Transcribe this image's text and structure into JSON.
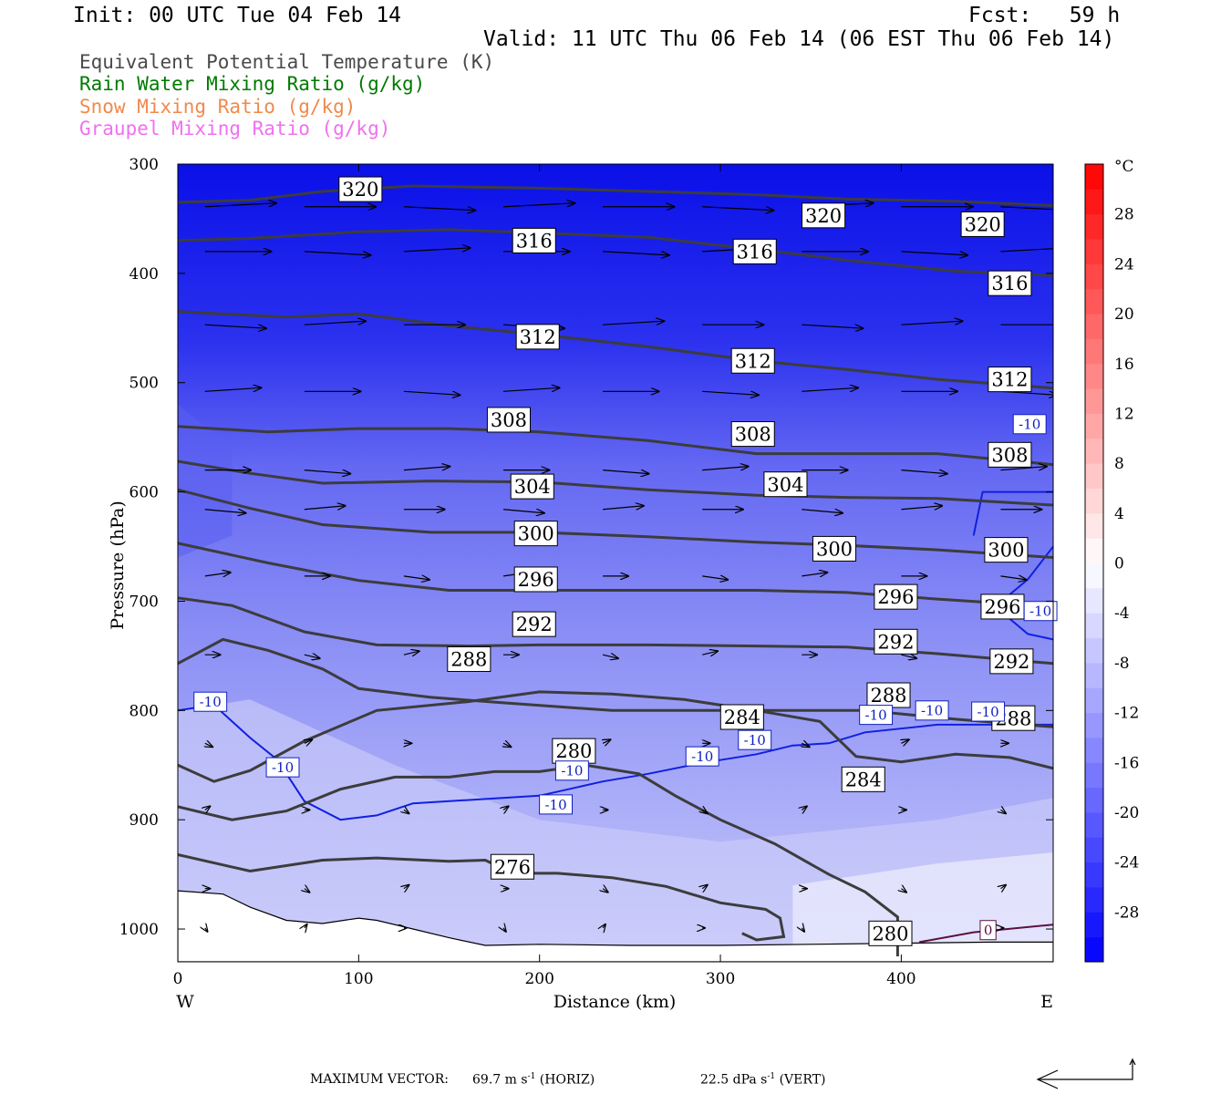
{
  "header": {
    "init": "Init: 00 UTC Tue 04 Feb 14",
    "fcst": "Fcst:   59 h",
    "valid": "Valid: 11 UTC Thu 06 Feb 14 (06 EST Thu 06 Feb 14)"
  },
  "legend": [
    {
      "label": "Equivalent Potential Temperature (K)",
      "color": "#4a4a4a"
    },
    {
      "label": "Rain Water Mixing Ratio (g/kg)",
      "color": "#007a00"
    },
    {
      "label": "Snow Mixing Ratio (g/kg)",
      "color": "#f08a4b"
    },
    {
      "label": "Graupel Mixing Ratio (g/kg)",
      "color": "#f070f0"
    }
  ],
  "footer": {
    "prefix": "MAXIMUM VECTOR:",
    "horiz_value": "69.7",
    "horiz_unit": "m s",
    "horiz_exp": "-1",
    "horiz_tag": "(HORIZ)",
    "vert_value": "22.5",
    "vert_unit": "dPa s",
    "vert_exp": "-1",
    "vert_tag": "(VERT)"
  },
  "chart_data": {
    "type": "cross-section",
    "xlabel": "Distance (km)",
    "ylabel": "Pressure (hPa)",
    "x_ticks": [
      0,
      100,
      200,
      300,
      400
    ],
    "y_ticks": [
      300,
      400,
      500,
      600,
      700,
      800,
      900,
      1000
    ],
    "xlim": [
      0,
      484
    ],
    "ylim": [
      300,
      1030
    ],
    "y_direction": "pressure increasing downward",
    "left_end_label": "W",
    "right_end_label": "E",
    "temperature_colorbar": {
      "unit": "°C",
      "tick_labels": [
        "28",
        "24",
        "20",
        "16",
        "12",
        "8",
        "4",
        "0",
        "-4",
        "-8",
        "-12",
        "-16",
        "-20",
        "-24",
        "-28"
      ],
      "tick_values": [
        28,
        24,
        20,
        16,
        12,
        8,
        4,
        0,
        -4,
        -8,
        -12,
        -16,
        -20,
        -24,
        -28
      ],
      "range": [
        -32,
        32
      ],
      "cold_color": "#0000ff",
      "neutral_color": "#ffffff",
      "warm_color": "#ff0000"
    },
    "theta_e_contours": [
      {
        "label": "320",
        "points": [
          [
            0,
            335
          ],
          [
            40,
            333
          ],
          [
            80,
            325
          ],
          [
            130,
            320
          ],
          [
            200,
            322
          ],
          [
            260,
            325
          ],
          [
            320,
            328
          ],
          [
            370,
            332
          ],
          [
            430,
            334
          ],
          [
            484,
            338
          ]
        ],
        "labels_at": [
          [
            101,
            323
          ],
          [
            357,
            347
          ],
          [
            445,
            355
          ]
        ]
      },
      {
        "label": "316",
        "points": [
          [
            0,
            370
          ],
          [
            40,
            368
          ],
          [
            100,
            362
          ],
          [
            150,
            360
          ],
          [
            200,
            363
          ],
          [
            260,
            367
          ],
          [
            320,
            378
          ],
          [
            370,
            388
          ],
          [
            430,
            398
          ],
          [
            484,
            402
          ]
        ],
        "labels_at": [
          [
            197,
            370
          ],
          [
            319,
            380
          ],
          [
            460,
            409
          ]
        ]
      },
      {
        "label": "312",
        "points": [
          [
            0,
            435
          ],
          [
            60,
            440
          ],
          [
            100,
            437
          ],
          [
            150,
            448
          ],
          [
            200,
            456
          ],
          [
            260,
            467
          ],
          [
            320,
            480
          ],
          [
            370,
            488
          ],
          [
            420,
            497
          ],
          [
            484,
            505
          ]
        ],
        "labels_at": [
          [
            199,
            458
          ],
          [
            318,
            480
          ],
          [
            460,
            497
          ]
        ]
      },
      {
        "label": "308",
        "points": [
          [
            0,
            540
          ],
          [
            50,
            545
          ],
          [
            100,
            542
          ],
          [
            150,
            542
          ],
          [
            200,
            545
          ],
          [
            260,
            553
          ],
          [
            320,
            565
          ],
          [
            370,
            565
          ],
          [
            420,
            565
          ],
          [
            484,
            575
          ]
        ],
        "labels_at": [
          [
            183,
            534
          ],
          [
            318,
            547
          ],
          [
            460,
            566
          ]
        ]
      },
      {
        "label": "304",
        "points": [
          [
            0,
            572
          ],
          [
            40,
            583
          ],
          [
            80,
            592
          ],
          [
            140,
            590
          ],
          [
            200,
            591
          ],
          [
            260,
            598
          ],
          [
            320,
            603
          ],
          [
            370,
            605
          ],
          [
            420,
            606
          ],
          [
            484,
            612
          ]
        ],
        "labels_at": [
          [
            196,
            595
          ],
          [
            336,
            593
          ]
        ]
      },
      {
        "label": "300",
        "points": [
          [
            0,
            598
          ],
          [
            40,
            615
          ],
          [
            80,
            630
          ],
          [
            140,
            637
          ],
          [
            200,
            637
          ],
          [
            260,
            641
          ],
          [
            320,
            646
          ],
          [
            370,
            649
          ],
          [
            420,
            653
          ],
          [
            484,
            660
          ]
        ],
        "labels_at": [
          [
            198,
            638
          ],
          [
            363,
            652
          ],
          [
            458,
            653
          ]
        ]
      },
      {
        "label": "296",
        "points": [
          [
            0,
            647
          ],
          [
            50,
            665
          ],
          [
            100,
            681
          ],
          [
            150,
            690
          ],
          [
            200,
            690
          ],
          [
            260,
            690
          ],
          [
            320,
            690
          ],
          [
            370,
            692
          ],
          [
            420,
            698
          ],
          [
            484,
            705
          ]
        ],
        "labels_at": [
          [
            198,
            680
          ],
          [
            397,
            696
          ],
          [
            456,
            705
          ]
        ]
      },
      {
        "label": "292",
        "points": [
          [
            0,
            697
          ],
          [
            30,
            704
          ],
          [
            70,
            728
          ],
          [
            110,
            740
          ],
          [
            160,
            741
          ],
          [
            200,
            740
          ],
          [
            260,
            740
          ],
          [
            320,
            741
          ],
          [
            370,
            742
          ],
          [
            420,
            748
          ],
          [
            484,
            757
          ]
        ],
        "labels_at": [
          [
            197,
            721
          ],
          [
            397,
            737
          ],
          [
            461,
            755
          ]
        ]
      },
      {
        "label": "288",
        "points": [
          [
            0,
            757
          ],
          [
            25,
            735
          ],
          [
            50,
            745
          ],
          [
            80,
            762
          ],
          [
            100,
            780
          ],
          [
            140,
            788
          ],
          [
            180,
            793
          ],
          [
            240,
            800
          ],
          [
            320,
            800
          ],
          [
            380,
            800
          ],
          [
            430,
            808
          ],
          [
            484,
            815
          ]
        ],
        "labels_at": [
          [
            161,
            753
          ],
          [
            393,
            786
          ],
          [
            462,
            807
          ]
        ]
      },
      {
        "label": "284",
        "points": [
          [
            0,
            850
          ],
          [
            20,
            865
          ],
          [
            40,
            855
          ],
          [
            70,
            828
          ],
          [
            110,
            800
          ],
          [
            160,
            792
          ],
          [
            200,
            783
          ],
          [
            240,
            785
          ],
          [
            280,
            790
          ],
          [
            320,
            800
          ],
          [
            355,
            810
          ],
          [
            375,
            842
          ],
          [
            400,
            847
          ],
          [
            430,
            840
          ],
          [
            460,
            843
          ],
          [
            484,
            853
          ]
        ],
        "labels_at": [
          [
            312,
            806
          ],
          [
            379,
            863
          ]
        ]
      },
      {
        "label": "280",
        "points": [
          [
            0,
            888
          ],
          [
            30,
            900
          ],
          [
            60,
            892
          ],
          [
            90,
            872
          ],
          [
            120,
            861
          ],
          [
            150,
            861
          ],
          [
            175,
            856
          ],
          [
            200,
            856
          ],
          [
            225,
            850
          ],
          [
            255,
            858
          ],
          [
            275,
            878
          ],
          [
            300,
            900
          ],
          [
            330,
            922
          ],
          [
            360,
            950
          ],
          [
            380,
            966
          ],
          [
            398,
            989
          ],
          [
            398,
            1025
          ]
        ],
        "labels_at": [
          [
            219,
            837
          ],
          [
            394,
            1004
          ]
        ]
      },
      {
        "label": "276",
        "points": [
          [
            0,
            932
          ],
          [
            40,
            947
          ],
          [
            80,
            937
          ],
          [
            110,
            935
          ],
          [
            150,
            938
          ],
          [
            170,
            937
          ],
          [
            185,
            949
          ],
          [
            210,
            949
          ],
          [
            240,
            953
          ],
          [
            270,
            961
          ],
          [
            300,
            976
          ],
          [
            325,
            982
          ],
          [
            333,
            990
          ],
          [
            335,
            1007
          ],
          [
            320,
            1010
          ],
          [
            312,
            1004
          ]
        ],
        "labels_at": [
          [
            185,
            943
          ]
        ]
      }
    ],
    "minus10_isotherm": {
      "label": "-10",
      "points": [
        [
          0,
          800
        ],
        [
          20,
          795
        ],
        [
          40,
          825
        ],
        [
          55,
          845
        ],
        [
          70,
          883
        ],
        [
          90,
          900
        ],
        [
          110,
          896
        ],
        [
          130,
          885
        ],
        [
          160,
          882
        ],
        [
          200,
          878
        ],
        [
          235,
          865
        ],
        [
          260,
          858
        ],
        [
          290,
          848
        ],
        [
          320,
          840
        ],
        [
          340,
          832
        ],
        [
          360,
          830
        ],
        [
          380,
          820
        ],
        [
          420,
          813
        ],
        [
          484,
          813
        ]
      ],
      "labels_at": [
        [
          18,
          792
        ],
        [
          58,
          852
        ],
        [
          209,
          886
        ],
        [
          218,
          855
        ],
        [
          290,
          842
        ],
        [
          319,
          827
        ],
        [
          386,
          804
        ],
        [
          417,
          800
        ],
        [
          448,
          801
        ],
        [
          471,
          538
        ],
        [
          477,
          709
        ]
      ]
    },
    "zero_isotherm": {
      "label": "0",
      "labels_at": [
        [
          448,
          1001
        ]
      ]
    },
    "wind_vectors_note": "arrows show horizontal (m/s) and vertical (dPa/s) circulation in the section plane"
  }
}
